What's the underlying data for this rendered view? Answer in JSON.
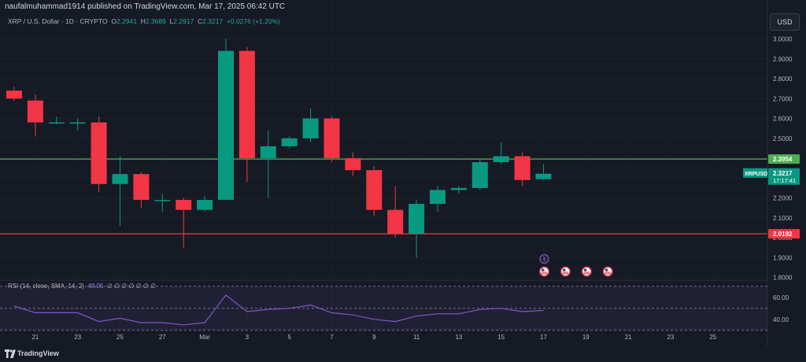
{
  "header": {
    "publish_line": "naufalmuhammad1914 published on TradingView.com, Mar 17, 2025 06:42 UTC",
    "symbol_title": "XRP / U.S. Dollar · 1D · CRYPTO",
    "ohlc": {
      "o_label": "O",
      "o": "2.2941",
      "h_label": "H",
      "h": "2.3689",
      "l_label": "L",
      "l": "2.2917",
      "c_label": "C",
      "c": "2.3217",
      "change": "+0.0276 (+1.20%)"
    },
    "currency_button": "USD"
  },
  "footer": {
    "brand": "TradingView"
  },
  "colors": {
    "up": "#089981",
    "down": "#f23645",
    "resistance": "#4caf50",
    "support": "#f23645",
    "rsi": "#7e57c2",
    "background": "#161a25"
  },
  "chart_data": [
    {
      "type": "candlestick",
      "title": "XRP / U.S. Dollar · 1D · CRYPTO",
      "ylim": [
        1.8,
        3.05
      ],
      "y_ticks": [
        "3.0000",
        "2.9000",
        "2.8000",
        "2.7000",
        "2.6000",
        "2.5000",
        "2.4000",
        "2.3000",
        "2.2000",
        "2.1000",
        "2.0000",
        "1.9000",
        "1.8000"
      ],
      "x_ticks": [
        "21",
        "23",
        "25",
        "27",
        "Mar",
        "3",
        "5",
        "7",
        "9",
        "11",
        "13",
        "15",
        "17",
        "19",
        "21",
        "23",
        "25"
      ],
      "candles": [
        {
          "date": "Feb 20",
          "o": 2.74,
          "h": 2.76,
          "l": 2.69,
          "c": 2.7
        },
        {
          "date": "Feb 21",
          "o": 2.69,
          "h": 2.72,
          "l": 2.51,
          "c": 2.58
        },
        {
          "date": "Feb 22",
          "o": 2.58,
          "h": 2.61,
          "l": 2.57,
          "c": 2.58
        },
        {
          "date": "Feb 23",
          "o": 2.58,
          "h": 2.6,
          "l": 2.54,
          "c": 2.58
        },
        {
          "date": "Feb 24",
          "o": 2.58,
          "h": 2.61,
          "l": 2.23,
          "c": 2.27
        },
        {
          "date": "Feb 25",
          "o": 2.27,
          "h": 2.41,
          "l": 2.06,
          "c": 2.32
        },
        {
          "date": "Feb 26",
          "o": 2.32,
          "h": 2.33,
          "l": 2.15,
          "c": 2.19
        },
        {
          "date": "Feb 27",
          "o": 2.19,
          "h": 2.22,
          "l": 2.13,
          "c": 2.19
        },
        {
          "date": "Feb 28",
          "o": 2.19,
          "h": 2.2,
          "l": 1.95,
          "c": 2.14
        },
        {
          "date": "Mar 1",
          "o": 2.14,
          "h": 2.21,
          "l": 2.13,
          "c": 2.19
        },
        {
          "date": "Mar 2",
          "o": 2.19,
          "h": 3.0,
          "l": 2.19,
          "c": 2.94
        },
        {
          "date": "Mar 3",
          "o": 2.94,
          "h": 2.96,
          "l": 2.28,
          "c": 2.4
        },
        {
          "date": "Mar 4",
          "o": 2.4,
          "h": 2.54,
          "l": 2.2,
          "c": 2.46
        },
        {
          "date": "Mar 5",
          "o": 2.46,
          "h": 2.51,
          "l": 2.45,
          "c": 2.5
        },
        {
          "date": "Mar 6",
          "o": 2.5,
          "h": 2.65,
          "l": 2.48,
          "c": 2.6
        },
        {
          "date": "Mar 7",
          "o": 2.6,
          "h": 2.61,
          "l": 2.38,
          "c": 2.4
        },
        {
          "date": "Mar 8",
          "o": 2.4,
          "h": 2.43,
          "l": 2.31,
          "c": 2.34
        },
        {
          "date": "Mar 9",
          "o": 2.34,
          "h": 2.36,
          "l": 2.11,
          "c": 2.14
        },
        {
          "date": "Mar 10",
          "o": 2.14,
          "h": 2.26,
          "l": 2.0,
          "c": 2.02
        },
        {
          "date": "Mar 11",
          "o": 2.02,
          "h": 2.19,
          "l": 1.9,
          "c": 2.17
        },
        {
          "date": "Mar 12",
          "o": 2.17,
          "h": 2.26,
          "l": 2.13,
          "c": 2.24
        },
        {
          "date": "Mar 13",
          "o": 2.24,
          "h": 2.26,
          "l": 2.22,
          "c": 2.25
        },
        {
          "date": "Mar 14",
          "o": 2.25,
          "h": 2.4,
          "l": 2.24,
          "c": 2.38
        },
        {
          "date": "Mar 15",
          "o": 2.38,
          "h": 2.48,
          "l": 2.37,
          "c": 2.41
        },
        {
          "date": "Mar 16",
          "o": 2.41,
          "h": 2.43,
          "l": 2.26,
          "c": 2.29
        },
        {
          "date": "Mar 17",
          "o": 2.2941,
          "h": 2.3689,
          "l": 2.2917,
          "c": 2.3217
        }
      ],
      "horizontal_lines": [
        {
          "value": 2.3954,
          "label": "2.3954",
          "color": "#4caf50"
        },
        {
          "value": 2.0192,
          "label": "2.0192",
          "color": "#f23645"
        }
      ],
      "last_price": {
        "symbol": "XRPUSD",
        "value": "2.3217",
        "countdown": "17:17:41"
      },
      "event_markers": [
        {
          "date": "Mar 17",
          "kind": "split-icon"
        },
        {
          "date": "Mar 17",
          "kind": "us-flag-icon"
        },
        {
          "date": "Mar 18",
          "kind": "us-flag-icon"
        },
        {
          "date": "Mar 19",
          "kind": "us-flag-icon"
        },
        {
          "date": "Mar 20",
          "kind": "us-flag-icon"
        }
      ]
    },
    {
      "type": "line",
      "title": "RSI (14, close, SMA, 14, 2)",
      "legend_text": "RSI (14, close, SMA, 14, 2)",
      "current_value": "48.05",
      "placeholders": "∅ ∅ ∅ ∅ ∅ ∅ ∅",
      "ylim": [
        32,
        72
      ],
      "y_ticks": [
        "60.00",
        "40.00"
      ],
      "band": [
        30,
        70
      ],
      "values": [
        52,
        46,
        46,
        46,
        38,
        41,
        37,
        37,
        35,
        37,
        62,
        47,
        49,
        50,
        53,
        46,
        44,
        40,
        38,
        43,
        45,
        45,
        49,
        50,
        47,
        48.05
      ]
    }
  ]
}
